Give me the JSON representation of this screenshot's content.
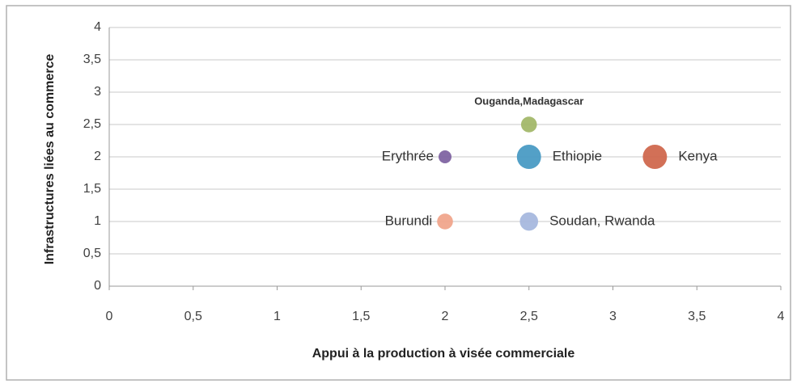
{
  "chart_data": {
    "type": "bubble",
    "x_label": "Appui à la production à visée commerciale",
    "y_label": "Infrastructures liées au commerce",
    "xlim": [
      0,
      4
    ],
    "ylim": [
      0,
      4
    ],
    "xticks": [
      0,
      {
        "value": 0.5,
        "label": "0,5"
      },
      1,
      {
        "value": 1.5,
        "label": "1,5"
      },
      2,
      {
        "value": 2.5,
        "label": "2,5"
      },
      3,
      {
        "value": 3.5,
        "label": "3,5"
      },
      4
    ],
    "yticks": [
      0,
      {
        "value": 0.5,
        "label": "0,5"
      },
      1,
      {
        "value": 1.5,
        "label": "1,5"
      },
      2,
      {
        "value": 2.5,
        "label": "2,5"
      },
      3,
      {
        "value": 3.5,
        "label": "3,5"
      },
      4
    ],
    "grid": true,
    "series": [
      {
        "name": "Erythrée",
        "color": "#8064a2",
        "x": 2,
        "y": 2,
        "size": 1
      },
      {
        "name": "Ethiopie",
        "color": "#4a9bc4",
        "x": 2.5,
        "y": 2,
        "size": 3.5
      },
      {
        "name": "Kenya",
        "color": "#d0684e",
        "x": 3.25,
        "y": 2,
        "size": 3.5
      },
      {
        "name": "Ouganda,Madagascar",
        "color": "#a3b86a",
        "x": 2.5,
        "y": 2.5,
        "size": 1.5
      },
      {
        "name": "Burundi",
        "color": "#f0a58c",
        "x": 2,
        "y": 1,
        "size": 1.5
      },
      {
        "name": "Soudan, Rwanda",
        "color": "#a7b8de",
        "x": 2.5,
        "y": 1,
        "size": 2
      }
    ]
  }
}
